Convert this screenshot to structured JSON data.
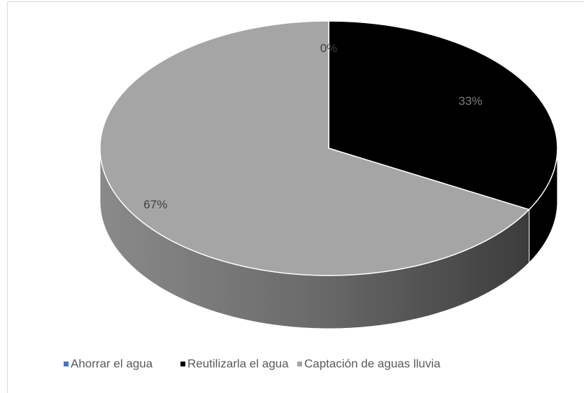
{
  "chart_data": {
    "type": "pie3d",
    "categories": [
      "Ahorrar el agua",
      "Reutilizarla el agua",
      "Captación de aguas lluvia"
    ],
    "series": [
      {
        "colors": [
          "#4472c4",
          "#000000",
          "#a5a5a5"
        ],
        "values": [
          0,
          33,
          67
        ],
        "value_labels": [
          "0%",
          "33%",
          "67%"
        ]
      }
    ],
    "legend": "bottom"
  }
}
